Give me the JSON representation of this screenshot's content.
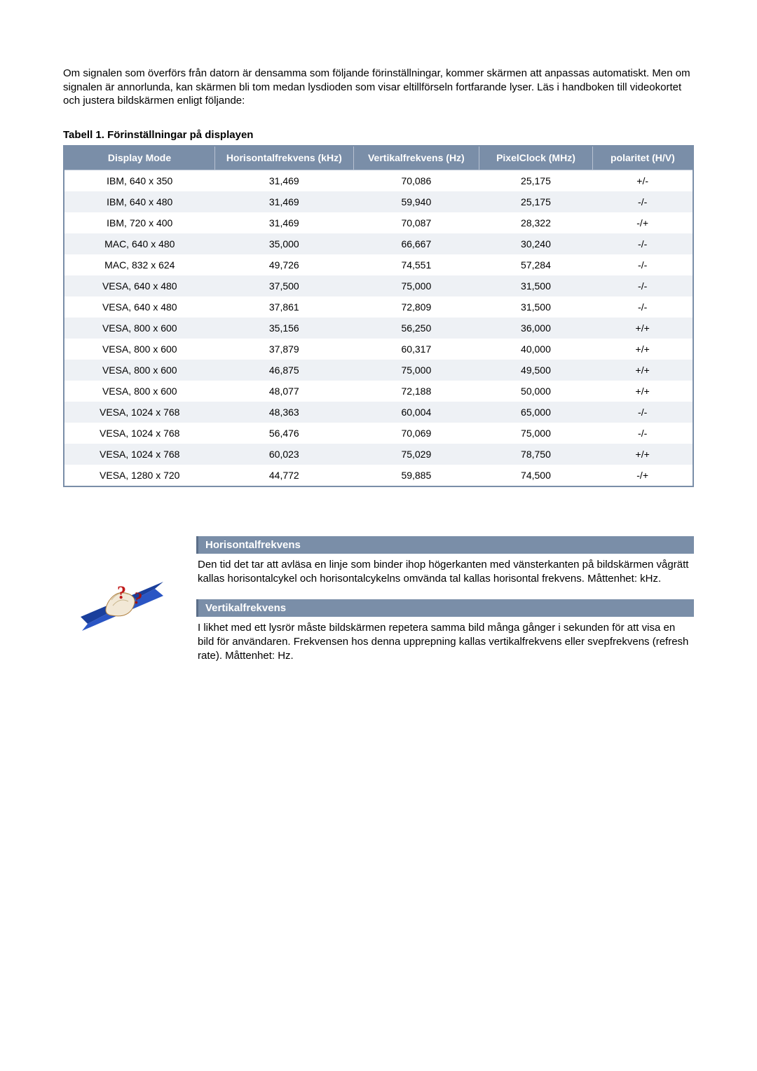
{
  "intro_text": "Om signalen som överförs från datorn är densamma som följande förinställningar, kommer skärmen att anpassas automatiskt. Men om signalen är annorlunda, kan skärmen bli tom medan lysdioden som visar eltillförseln fortfarande lyser. Läs i handboken till videokortet och justera bildskärmen enligt följande:",
  "table_title": "Tabell 1. Förinställningar på displayen",
  "table": {
    "header_bg": "#7a8ea8",
    "header_fg": "#ffffff",
    "row_alt_bg": "#eef1f5",
    "border_color": "#7a8ea8",
    "columns": [
      {
        "key": "mode",
        "label": "Display Mode"
      },
      {
        "key": "hfreq",
        "label": "Horisontalfrekvens (kHz)"
      },
      {
        "key": "vfreq",
        "label": "Vertikalfrekvens (Hz)"
      },
      {
        "key": "pixel",
        "label": "PixelClock (MHz)"
      },
      {
        "key": "pol",
        "label": "polaritet (H/V)"
      }
    ],
    "rows": [
      [
        "IBM, 640 x 350",
        "31,469",
        "70,086",
        "25,175",
        "+/-"
      ],
      [
        "IBM, 640 x 480",
        "31,469",
        "59,940",
        "25,175",
        "-/-"
      ],
      [
        "IBM, 720 x 400",
        "31,469",
        "70,087",
        "28,322",
        "-/+"
      ],
      [
        "MAC, 640 x 480",
        "35,000",
        "66,667",
        "30,240",
        "-/-"
      ],
      [
        "MAC, 832 x 624",
        "49,726",
        "74,551",
        "57,284",
        "-/-"
      ],
      [
        "VESA, 640 x 480",
        "37,500",
        "75,000",
        "31,500",
        "-/-"
      ],
      [
        "VESA, 640 x 480",
        "37,861",
        "72,809",
        "31,500",
        "-/-"
      ],
      [
        "VESA, 800 x 600",
        "35,156",
        "56,250",
        "36,000",
        "+/+"
      ],
      [
        "VESA, 800 x 600",
        "37,879",
        "60,317",
        "40,000",
        "+/+"
      ],
      [
        "VESA, 800 x 600",
        "46,875",
        "75,000",
        "49,500",
        "+/+"
      ],
      [
        "VESA, 800 x 600",
        "48,077",
        "72,188",
        "50,000",
        "+/+"
      ],
      [
        "VESA, 1024 x 768",
        "48,363",
        "60,004",
        "65,000",
        "-/-"
      ],
      [
        "VESA, 1024 x 768",
        "56,476",
        "70,069",
        "75,000",
        "-/-"
      ],
      [
        "VESA, 1024 x 768",
        "60,023",
        "75,029",
        "78,750",
        "+/+"
      ],
      [
        "VESA, 1280 x 720",
        "44,772",
        "59,885",
        "74,500",
        "-/+"
      ]
    ]
  },
  "info": {
    "sections": [
      {
        "heading": "Horisontalfrekvens",
        "text": "Den tid det tar att avläsa en linje som binder ihop högerkanten med vänsterkanten på bildskärmen vågrätt kallas horisontalcykel och horisontalcykelns omvända tal kallas horisontal frekvens. Måttenhet: kHz."
      },
      {
        "heading": "Vertikalfrekvens",
        "text": "I likhet med ett lysrör måste bildskärmen repetera samma bild många gånger i sekunden för att visa en bild för användaren. Frekvensen hos denna upprepning kallas vertikalfrekvens eller svepfrekvens (refresh rate). Måttenhet: Hz."
      }
    ],
    "icon": {
      "arrow_color": "#1a3f9c",
      "book_color": "#e8d9c0",
      "question_color": "#c01818"
    }
  }
}
